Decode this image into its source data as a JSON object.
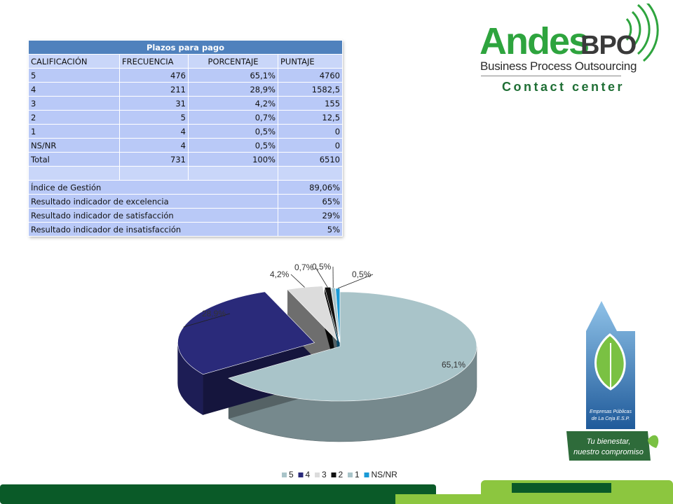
{
  "table": {
    "title": "Plazos para pago",
    "headers": [
      "CALIFICACIÓN",
      "FRECUENCIA",
      "PORCENTAJE",
      "PUNTAJE"
    ],
    "rows": [
      [
        "5",
        "476",
        "65,1%",
        "4760"
      ],
      [
        "4",
        "211",
        "28,9%",
        "1582,5"
      ],
      [
        "3",
        "31",
        "4,2%",
        "155"
      ],
      [
        "2",
        "5",
        "0,7%",
        "12,5"
      ],
      [
        "1",
        "4",
        "0,5%",
        "0"
      ],
      [
        "NS/NR",
        "4",
        "0,5%",
        "0"
      ],
      [
        "Total",
        "731",
        "100%",
        "6510"
      ]
    ],
    "summary": [
      {
        "label": "Índice de Gestión",
        "value": "89,06%"
      },
      {
        "label": "Resultado indicador de excelencia",
        "value": "65%"
      },
      {
        "label": "Resultado indicador de satisfacción",
        "value": "29%"
      },
      {
        "label": "Resultado indicador de insatisfacción",
        "value": "5%"
      }
    ]
  },
  "logo": {
    "brand_main": "Andes",
    "brand_suffix": "BPO",
    "subtitle": "Business Process Outsourcing",
    "tagline": "Contact center"
  },
  "epm_logo": {
    "company": "Empresas Públicas de La Ceja E.S.P.",
    "slogan_line1": "Tu bienestar,",
    "slogan_line2": "nuestro compromiso"
  },
  "colors": {
    "table_title": "#4f81bd",
    "table_cell": "#b9c9f7",
    "brand_green": "#2ea43e",
    "footer_dark": "#0a5a28",
    "footer_light": "#8cc63f"
  },
  "chart_data": {
    "type": "pie",
    "style": "3d-exploded",
    "categories": [
      "5",
      "4",
      "3",
      "2",
      "1",
      "NS/NR"
    ],
    "values": [
      65.1,
      28.9,
      4.2,
      0.7,
      0.5,
      0.5
    ],
    "labels": [
      "65,1%",
      "28,9%",
      "4,2%",
      "0,7%",
      "0,5%",
      "0,5%"
    ],
    "colors": [
      "#a9c4c9",
      "#2a2a7a",
      "#dcdcdc",
      "#111111",
      "#a9c4c9",
      "#1a9ad6"
    ],
    "legend_placement": "bottom"
  }
}
